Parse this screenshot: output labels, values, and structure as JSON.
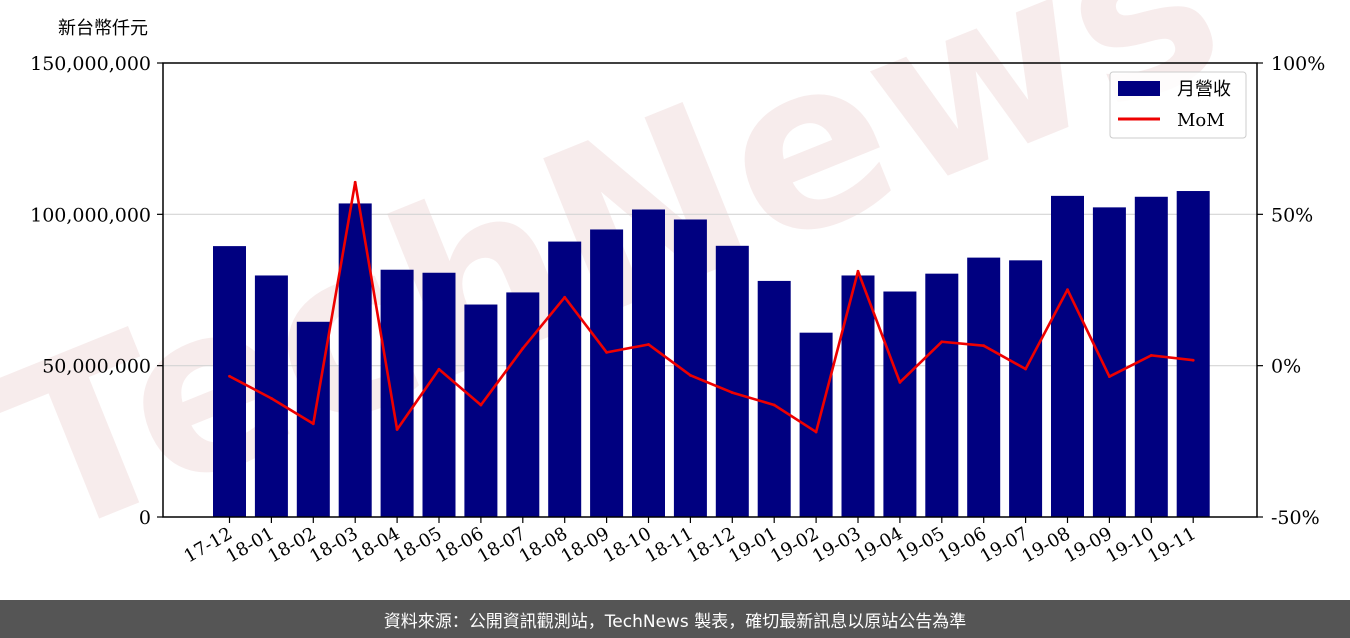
{
  "unit_label": "新台幣仟元",
  "footer_text": "資料來源：公開資訊觀測站，TechNews 製表，確切最新訊息以原站公告為準",
  "watermark_text": "TechNews",
  "chart_data": {
    "type": "bar+line",
    "categories": [
      "17-12",
      "18-01",
      "18-02",
      "18-03",
      "18-04",
      "18-05",
      "18-06",
      "18-07",
      "18-08",
      "18-09",
      "18-10",
      "18-11",
      "18-12",
      "19-01",
      "19-02",
      "19-03",
      "19-04",
      "19-05",
      "19-06",
      "19-07",
      "19-08",
      "19-09",
      "19-10",
      "19-11"
    ],
    "series": [
      {
        "name": "月營收",
        "type": "bar",
        "axis": "left",
        "color": "#000080",
        "values": [
          89500000,
          79800000,
          64500000,
          103600000,
          81700000,
          80700000,
          70200000,
          74200000,
          91000000,
          95000000,
          101600000,
          98300000,
          89600000,
          78000000,
          60900000,
          79800000,
          74500000,
          80400000,
          85700000,
          84800000,
          106100000,
          102300000,
          105800000,
          107700000
        ]
      },
      {
        "name": "MoM",
        "type": "line",
        "axis": "right",
        "color": "#ee0000",
        "values": [
          -3.5,
          -10.8,
          -19.2,
          60.6,
          -21.1,
          -1.2,
          -13.0,
          5.7,
          22.6,
          4.4,
          7.0,
          -3.2,
          -8.9,
          -13.0,
          -21.9,
          31.2,
          -5.5,
          7.9,
          6.6,
          -1.1,
          25.1,
          -3.6,
          3.4,
          1.8
        ]
      }
    ],
    "left_axis": {
      "ylim": [
        0,
        150000000
      ],
      "ticks": [
        "0",
        "50,000,000",
        "100,000,000",
        "150,000,000"
      ],
      "tick_values": [
        0,
        50000000,
        100000000,
        150000000
      ]
    },
    "right_axis": {
      "ylim": [
        -50,
        100
      ],
      "ticks": [
        "-50%",
        "0%",
        "50%",
        "100%"
      ],
      "tick_values": [
        -50,
        0,
        50,
        100
      ]
    },
    "grid": "horizontal",
    "legend": {
      "placement": "top-right",
      "entries": [
        "月營收",
        "MoM"
      ]
    }
  }
}
